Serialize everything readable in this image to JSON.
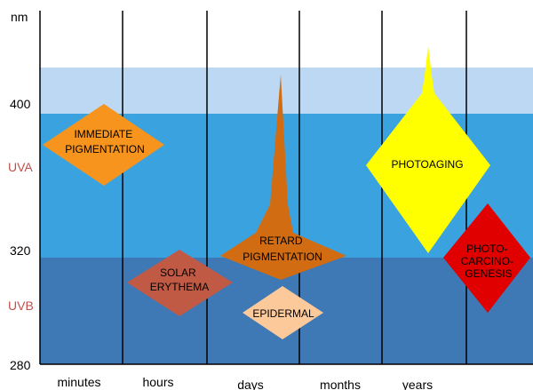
{
  "colors": {
    "band_top": "#bcd8f2",
    "band_uva": "#3aa3df",
    "band_uvb": "#3e78b5",
    "uv_label": "#c0504d",
    "immediate": "#f7941d",
    "solar": "#c05a45",
    "retard": "#d26c12",
    "epidermal": "#fcc99b",
    "photoaging": "#ffff00",
    "carcino": "#e00000"
  },
  "y_axis": {
    "unit": "nm",
    "tick_400": "400",
    "tick_320": "320",
    "tick_280": "280",
    "uva": "UVA",
    "uvb": "UVB"
  },
  "x_axis": {
    "labels": [
      "minutes",
      "hours",
      "days",
      "months",
      "years"
    ]
  },
  "shapes": {
    "immediate": {
      "lines": [
        "IMMEDIATE",
        "PIGMENTATION"
      ]
    },
    "solar": {
      "lines": [
        "SOLAR",
        "ERYTHEMA"
      ]
    },
    "retard": {
      "lines": [
        "RETARD",
        "PIGMENTATION"
      ]
    },
    "epidermal": {
      "lines": [
        "EPIDERMAL"
      ]
    },
    "photoaging": {
      "lines": [
        "PHOTOAGING"
      ]
    },
    "carcino": {
      "lines": [
        "PHOTO-",
        "CARCINO-",
        "GENESIS"
      ]
    }
  }
}
